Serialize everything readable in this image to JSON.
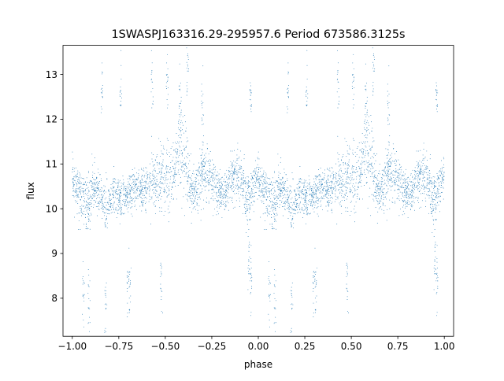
{
  "chart_data": {
    "type": "scatter",
    "title": "1SWASPJ163316.29-295957.6 Period 673586.3125s",
    "xlabel": "phase",
    "ylabel": "flux",
    "xlim": [
      -1.05,
      1.05
    ],
    "ylim": [
      7.15,
      13.65
    ],
    "x_ticks": [
      -1.0,
      -0.75,
      -0.5,
      -0.25,
      0.0,
      0.25,
      0.5,
      0.75,
      1.0
    ],
    "x_tick_labels": [
      "−1.00",
      "−0.75",
      "−0.50",
      "−0.25",
      "0.00",
      "0.25",
      "0.50",
      "0.75",
      "1.00"
    ],
    "y_ticks": [
      8,
      9,
      10,
      11,
      12,
      13
    ],
    "y_tick_labels": [
      "8",
      "9",
      "10",
      "11",
      "12",
      "13"
    ],
    "grid": false,
    "legend": "none",
    "point_color": "#1f77b4",
    "series": [
      {
        "description_of_shape": "phase-folded light curve, shown twice (phase -1..0 and 0..1)",
        "profile": [
          [
            0.0,
            10.7,
            0.3
          ],
          [
            0.03,
            10.4,
            0.35
          ],
          [
            0.06,
            10.2,
            0.45
          ],
          [
            0.09,
            10.1,
            0.45
          ],
          [
            0.12,
            10.5,
            0.4
          ],
          [
            0.15,
            10.3,
            0.4
          ],
          [
            0.18,
            10.0,
            0.35
          ],
          [
            0.21,
            10.3,
            0.4
          ],
          [
            0.25,
            10.2,
            0.3
          ],
          [
            0.28,
            10.2,
            0.35
          ],
          [
            0.31,
            10.3,
            0.35
          ],
          [
            0.34,
            10.5,
            0.3
          ],
          [
            0.37,
            10.4,
            0.3
          ],
          [
            0.4,
            10.4,
            0.35
          ],
          [
            0.43,
            10.6,
            0.45
          ],
          [
            0.46,
            10.6,
            0.5
          ],
          [
            0.49,
            10.8,
            0.55
          ],
          [
            0.52,
            10.6,
            0.5
          ],
          [
            0.55,
            10.8,
            0.4
          ],
          [
            0.58,
            11.5,
            0.7
          ],
          [
            0.61,
            10.9,
            0.55
          ],
          [
            0.64,
            10.5,
            0.4
          ],
          [
            0.67,
            10.4,
            0.4
          ],
          [
            0.7,
            10.9,
            0.45
          ],
          [
            0.73,
            10.8,
            0.4
          ],
          [
            0.76,
            10.5,
            0.4
          ],
          [
            0.79,
            10.4,
            0.3
          ],
          [
            0.82,
            10.3,
            0.3
          ],
          [
            0.85,
            10.6,
            0.35
          ],
          [
            0.88,
            10.8,
            0.4
          ],
          [
            0.91,
            10.6,
            0.4
          ],
          [
            0.94,
            10.1,
            0.45
          ],
          [
            0.97,
            10.5,
            0.4
          ],
          [
            1.0,
            10.7,
            0.3
          ]
        ],
        "low_outlier_clusters": [
          [
            0.06,
            8.2
          ],
          [
            0.09,
            7.9
          ],
          [
            0.3,
            8.5
          ],
          [
            0.31,
            8.2
          ],
          [
            0.18,
            7.9
          ],
          [
            0.95,
            8.8
          ],
          [
            0.96,
            8.3
          ],
          [
            0.48,
            8.6
          ]
        ],
        "high_outlier_clusters": [
          [
            0.58,
            12.4
          ],
          [
            0.62,
            13.2
          ],
          [
            0.7,
            12.2
          ],
          [
            0.43,
            12.8
          ],
          [
            0.51,
            12.9
          ],
          [
            0.96,
            12.5
          ],
          [
            0.16,
            12.8
          ],
          [
            0.26,
            12.7
          ]
        ]
      }
    ]
  }
}
